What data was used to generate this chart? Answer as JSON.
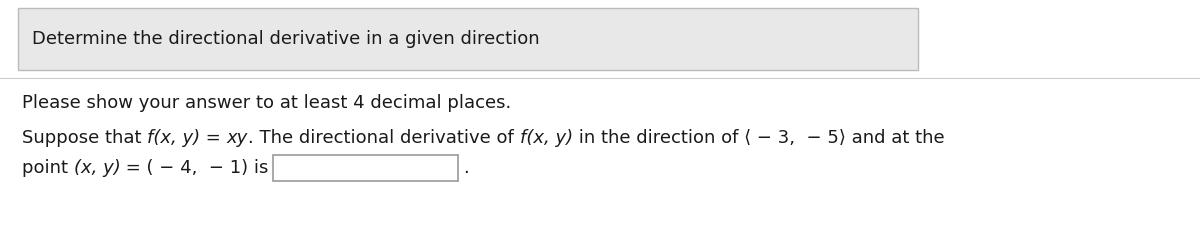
{
  "title_box_text": "Determine the directional derivative in a given direction",
  "line1": "Please show your answer to at least 4 decimal places.",
  "page_background": "#ffffff",
  "title_box_bg": "#e8e8e8",
  "title_box_border": "#bbbbbb",
  "text_color": "#1a1a1a",
  "input_box_color": "#ffffff",
  "input_box_border": "#999999",
  "sep_line_color": "#cccccc",
  "font_size_title": 13,
  "font_size_body": 13,
  "segments_line2": [
    [
      "Suppose that ",
      false
    ],
    [
      "f(x, y)",
      true
    ],
    [
      " = ",
      false
    ],
    [
      "xy",
      true
    ],
    [
      ". The directional derivative of ",
      false
    ],
    [
      "f(x, y)",
      true
    ],
    [
      " in the direction of ⟨ − 3,  − 5⟩ and at the",
      false
    ]
  ],
  "segments_line3": [
    [
      "point ",
      false
    ],
    [
      "(x, y)",
      true
    ],
    [
      " = ( − 4,  − 1) is",
      false
    ]
  ]
}
